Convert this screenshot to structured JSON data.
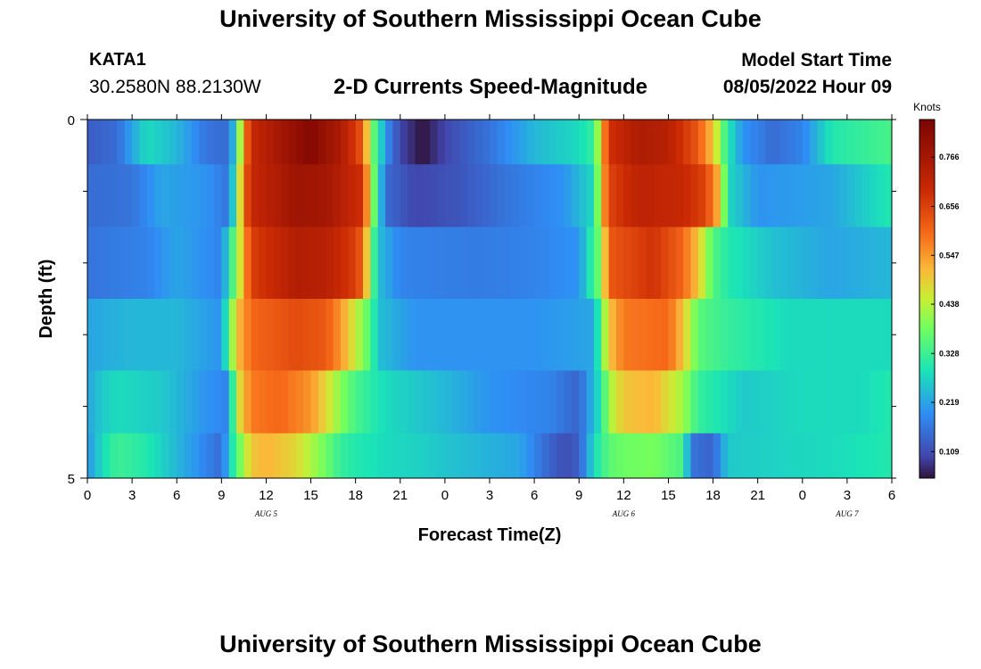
{
  "header": {
    "title": "University of Southern Mississippi Ocean Cube",
    "station_id": "KATA1",
    "station_coords": "30.2580N  88.2130W",
    "chart_title": "2-D Currents Speed-Magnitude",
    "model_start_label": "Model Start Time",
    "model_start_value": "08/05/2022 Hour 09"
  },
  "footer": {
    "title": "University of Southern Mississippi Ocean Cube"
  },
  "chart_data": {
    "type": "heatmap",
    "title": "2-D Currents Speed-Magnitude",
    "xlabel": "Forecast Time(Z)",
    "ylabel": "Depth (ft)",
    "units": "Knots",
    "x_tick_labels": [
      "0",
      "3",
      "6",
      "9",
      "12",
      "15",
      "18",
      "21",
      "0",
      "3",
      "6",
      "9",
      "12",
      "15",
      "18",
      "21",
      "0",
      "3",
      "6"
    ],
    "date_labels": [
      {
        "text": "AUG 5",
        "hour": 12
      },
      {
        "text": "AUG 6",
        "hour": 36
      },
      {
        "text": "AUG 7",
        "hour": 51
      }
    ],
    "x_range_hours": [
      0,
      54
    ],
    "depth_range_ft": [
      0,
      5
    ],
    "y_tick_labels": [
      "0",
      "5"
    ],
    "colorbar_ticks": [
      "0.109",
      "0.219",
      "0.328",
      "0.438",
      "0.547",
      "0.656",
      "0.766"
    ],
    "colorbar_range": [
      0.05,
      0.85
    ],
    "grid": false,
    "time_step_hours": 0.5,
    "depth_layers_ft": [
      0.25,
      1.0,
      2.0,
      3.0,
      4.0,
      4.75
    ],
    "layer_keyframes": [
      [
        [
          0,
          0.13
        ],
        [
          2,
          0.15
        ],
        [
          3,
          0.22
        ],
        [
          4,
          0.28
        ],
        [
          6,
          0.24
        ],
        [
          8,
          0.16
        ],
        [
          9.5,
          0.15
        ],
        [
          10,
          0.3
        ],
        [
          10.5,
          0.55
        ],
        [
          11,
          0.7
        ],
        [
          13,
          0.77
        ],
        [
          15,
          0.83
        ],
        [
          17,
          0.75
        ],
        [
          18.5,
          0.62
        ],
        [
          19,
          0.4
        ],
        [
          19.5,
          0.32
        ],
        [
          20,
          0.2
        ],
        [
          21,
          0.1
        ],
        [
          22.5,
          0.05
        ],
        [
          24,
          0.1
        ],
        [
          27,
          0.16
        ],
        [
          30,
          0.24
        ],
        [
          33,
          0.28
        ],
        [
          34,
          0.32
        ],
        [
          34.5,
          0.5
        ],
        [
          35,
          0.68
        ],
        [
          37,
          0.75
        ],
        [
          39,
          0.73
        ],
        [
          41,
          0.62
        ],
        [
          42,
          0.5
        ],
        [
          43,
          0.3
        ],
        [
          44,
          0.2
        ],
        [
          46,
          0.15
        ],
        [
          48,
          0.18
        ],
        [
          50,
          0.3
        ],
        [
          52,
          0.32
        ],
        [
          54,
          0.34
        ]
      ],
      [
        [
          0,
          0.15
        ],
        [
          3,
          0.16
        ],
        [
          5,
          0.22
        ],
        [
          8,
          0.2
        ],
        [
          9.5,
          0.16
        ],
        [
          10,
          0.35
        ],
        [
          10.5,
          0.6
        ],
        [
          11,
          0.7
        ],
        [
          14,
          0.78
        ],
        [
          16,
          0.77
        ],
        [
          18.5,
          0.68
        ],
        [
          19,
          0.45
        ],
        [
          19.5,
          0.3
        ],
        [
          20,
          0.15
        ],
        [
          22,
          0.1
        ],
        [
          25,
          0.12
        ],
        [
          28,
          0.16
        ],
        [
          32,
          0.2
        ],
        [
          34,
          0.28
        ],
        [
          34.5,
          0.5
        ],
        [
          35,
          0.65
        ],
        [
          37,
          0.72
        ],
        [
          40,
          0.7
        ],
        [
          41.5,
          0.65
        ],
        [
          42.5,
          0.5
        ],
        [
          43,
          0.28
        ],
        [
          45,
          0.2
        ],
        [
          50,
          0.22
        ],
        [
          54,
          0.3
        ]
      ],
      [
        [
          0,
          0.16
        ],
        [
          4,
          0.18
        ],
        [
          6,
          0.22
        ],
        [
          9,
          0.18
        ],
        [
          10,
          0.4
        ],
        [
          11,
          0.66
        ],
        [
          14,
          0.74
        ],
        [
          16,
          0.73
        ],
        [
          18,
          0.66
        ],
        [
          18.5,
          0.6
        ],
        [
          19,
          0.4
        ],
        [
          19.5,
          0.25
        ],
        [
          21,
          0.18
        ],
        [
          26,
          0.17
        ],
        [
          30,
          0.18
        ],
        [
          33,
          0.2
        ],
        [
          34.5,
          0.4
        ],
        [
          35,
          0.62
        ],
        [
          38,
          0.68
        ],
        [
          40,
          0.6
        ],
        [
          41,
          0.5
        ],
        [
          42,
          0.35
        ],
        [
          43,
          0.3
        ],
        [
          46,
          0.25
        ],
        [
          50,
          0.22
        ],
        [
          54,
          0.24
        ]
      ],
      [
        [
          0,
          0.22
        ],
        [
          3,
          0.24
        ],
        [
          6,
          0.24
        ],
        [
          9,
          0.2
        ],
        [
          10,
          0.5
        ],
        [
          11,
          0.6
        ],
        [
          14,
          0.64
        ],
        [
          16,
          0.62
        ],
        [
          17,
          0.55
        ],
        [
          18,
          0.45
        ],
        [
          19,
          0.35
        ],
        [
          19.5,
          0.25
        ],
        [
          22,
          0.2
        ],
        [
          26,
          0.2
        ],
        [
          30,
          0.2
        ],
        [
          34,
          0.22
        ],
        [
          35,
          0.5
        ],
        [
          36,
          0.58
        ],
        [
          39,
          0.6
        ],
        [
          40,
          0.5
        ],
        [
          41,
          0.36
        ],
        [
          43,
          0.32
        ],
        [
          47,
          0.28
        ],
        [
          54,
          0.28
        ]
      ],
      [
        [
          0,
          0.22
        ],
        [
          1,
          0.26
        ],
        [
          2,
          0.28
        ],
        [
          5,
          0.26
        ],
        [
          8,
          0.2
        ],
        [
          9.5,
          0.18
        ],
        [
          10,
          0.45
        ],
        [
          11,
          0.58
        ],
        [
          13,
          0.6
        ],
        [
          15,
          0.55
        ],
        [
          16,
          0.48
        ],
        [
          17,
          0.4
        ],
        [
          18,
          0.34
        ],
        [
          20,
          0.28
        ],
        [
          24,
          0.24
        ],
        [
          27,
          0.2
        ],
        [
          31,
          0.18
        ],
        [
          33,
          0.14
        ],
        [
          34.5,
          0.3
        ],
        [
          35,
          0.42
        ],
        [
          36,
          0.5
        ],
        [
          38,
          0.52
        ],
        [
          40,
          0.42
        ],
        [
          41,
          0.32
        ],
        [
          44,
          0.26
        ],
        [
          48,
          0.28
        ],
        [
          52,
          0.28
        ],
        [
          54,
          0.3
        ]
      ],
      [
        [
          0,
          0.2
        ],
        [
          1,
          0.28
        ],
        [
          2,
          0.33
        ],
        [
          4,
          0.3
        ],
        [
          6,
          0.24
        ],
        [
          8,
          0.18
        ],
        [
          9,
          0.15
        ],
        [
          10,
          0.35
        ],
        [
          11,
          0.5
        ],
        [
          12,
          0.52
        ],
        [
          14,
          0.48
        ],
        [
          16,
          0.38
        ],
        [
          17,
          0.32
        ],
        [
          18,
          0.3
        ],
        [
          20,
          0.28
        ],
        [
          22,
          0.27
        ],
        [
          26,
          0.24
        ],
        [
          29,
          0.22
        ],
        [
          31,
          0.14
        ],
        [
          32,
          0.11
        ],
        [
          33,
          0.13
        ],
        [
          34,
          0.28
        ],
        [
          35,
          0.36
        ],
        [
          36,
          0.38
        ],
        [
          38,
          0.39
        ],
        [
          40,
          0.34
        ],
        [
          40.5,
          0.16
        ],
        [
          42,
          0.14
        ],
        [
          43,
          0.26
        ],
        [
          46,
          0.27
        ],
        [
          50,
          0.28
        ],
        [
          54,
          0.3
        ]
      ]
    ]
  }
}
